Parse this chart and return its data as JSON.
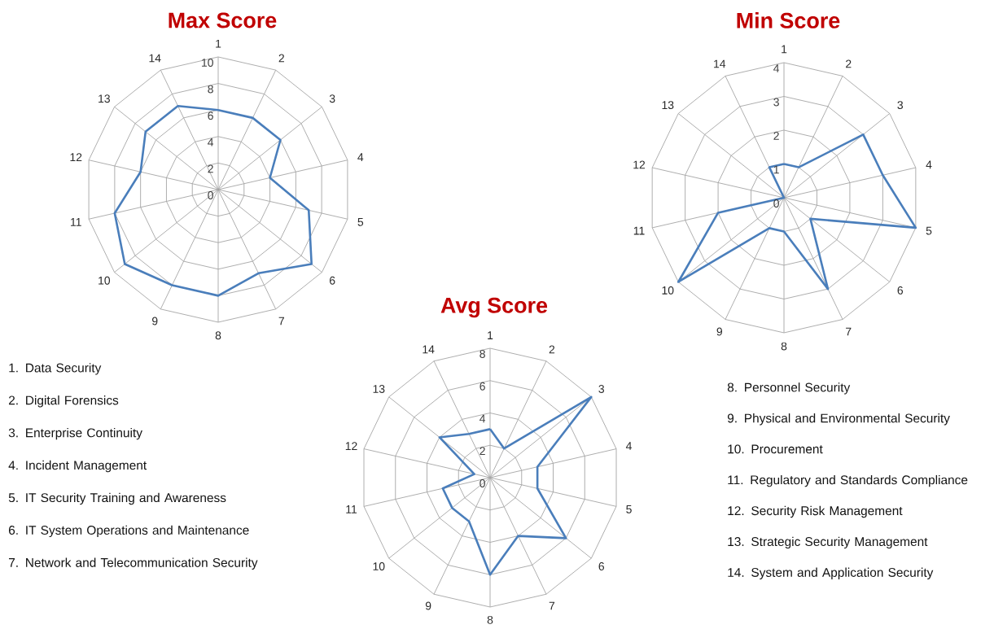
{
  "chart_data": [
    {
      "type": "radar",
      "title": "Max Score",
      "categories": [
        "1",
        "2",
        "3",
        "4",
        "5",
        "6",
        "7",
        "8",
        "9",
        "10",
        "11",
        "12",
        "13",
        "14"
      ],
      "series": [
        {
          "color": "#4a7ebb",
          "values": [
            6,
            6,
            6,
            4,
            7,
            9,
            7,
            8,
            8,
            9,
            8,
            6,
            7,
            7
          ]
        }
      ],
      "ylim": [
        0,
        10
      ],
      "yticks": [
        0,
        2,
        4,
        6,
        8,
        10
      ],
      "grid": true,
      "annotations": [
        "1. Data Security",
        "2. Digital Forensics",
        "3. Enterprise Continuity",
        "4. Incident Management",
        "5. IT Security Training and Awareness",
        "6. IT System Operations and Maintenance",
        "7. Network and Telecommunication Security"
      ]
    },
    {
      "type": "radar",
      "title": "Min Score",
      "categories": [
        "1",
        "2",
        "3",
        "4",
        "5",
        "6",
        "7",
        "8",
        "9",
        "10",
        "11",
        "12",
        "13",
        "14"
      ],
      "series": [
        {
          "color": "#4a7ebb",
          "values": [
            1,
            1,
            3,
            3,
            4,
            1,
            3,
            1,
            1,
            4,
            2,
            0,
            0,
            1
          ]
        }
      ],
      "ylim": [
        0,
        4
      ],
      "yticks": [
        0,
        1,
        2,
        3,
        4
      ],
      "grid": true,
      "annotations": [
        "8. Personnel Security",
        "9. Physical and Environmental Security",
        "10. Procurement",
        "11. Regulatory and Standards Compliance",
        "12. Security Risk Management",
        "13. Strategic Security Management",
        "14. System and Application Security"
      ]
    },
    {
      "type": "radar",
      "title": "Avg Score",
      "categories": [
        "1",
        "2",
        "3",
        "4",
        "5",
        "6",
        "7",
        "8",
        "9",
        "10",
        "11",
        "12",
        "13",
        "14"
      ],
      "series": [
        {
          "color": "#4a7ebb",
          "values": [
            3,
            2,
            8,
            3,
            3,
            6,
            4,
            6,
            3,
            3,
            3,
            1,
            4,
            3
          ]
        }
      ],
      "ylim": [
        0,
        8
      ],
      "yticks": [
        0,
        2,
        4,
        6,
        8
      ],
      "grid": true
    }
  ]
}
